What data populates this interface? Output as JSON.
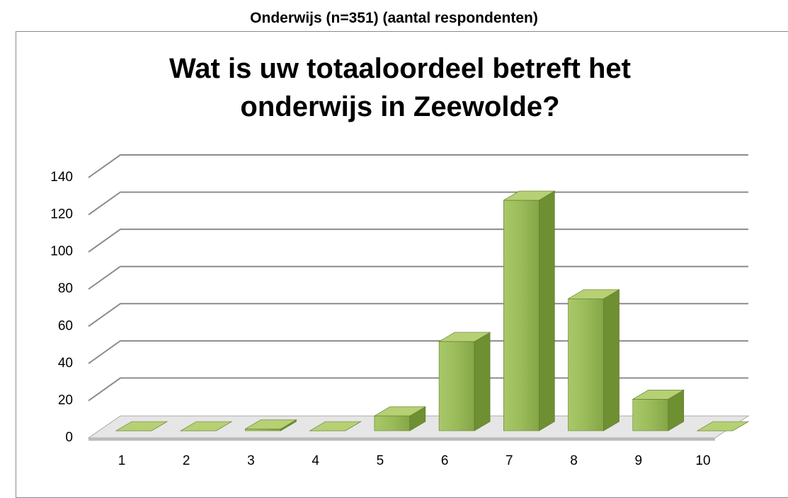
{
  "chart_data": {
    "type": "bar3d",
    "header": "Onderwijs (n=351) (aantal respondenten)",
    "title": "Wat is uw totaaloordeel betreft het onderwijs in Zeewolde?",
    "categories": [
      "1",
      "2",
      "3",
      "4",
      "5",
      "6",
      "7",
      "8",
      "9",
      "10"
    ],
    "values": [
      0,
      0,
      1,
      0,
      8,
      48,
      124,
      71,
      17,
      0
    ],
    "color": "#9bbb59",
    "ylim": [
      0,
      140
    ],
    "yticks": [
      0,
      20,
      40,
      60,
      80,
      100,
      120,
      140
    ],
    "grid": true
  }
}
